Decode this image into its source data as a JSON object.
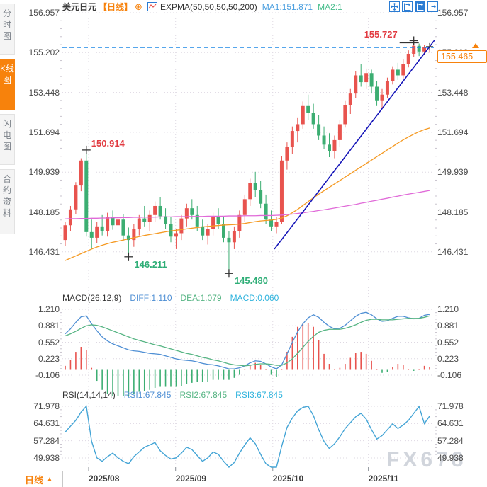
{
  "header": {
    "symbol": "美元日元",
    "period_tag": "【日线】",
    "add_icon": "⊕",
    "indicator": "EXPMA(50,50,50,50,200)",
    "ma1_label": "MA1:151.871",
    "ma2_label": "MA2:1"
  },
  "sidebar": {
    "tabs": [
      {
        "label": "分时图",
        "active": false
      },
      {
        "label": "K线图",
        "active": true
      },
      {
        "label": "闪电图",
        "active": false
      },
      {
        "label": "合约资料",
        "active": false
      }
    ]
  },
  "footer": {
    "period_label": "日线",
    "arrow": "▲"
  },
  "watermark": "FX678",
  "price_box": {
    "value": "155.465"
  },
  "colors": {
    "up": "#e8534e",
    "down": "#3cae72",
    "ma_orange": "#f59a23",
    "ma_magenta": "#e06ad8",
    "trend": "#1414b8",
    "dashed": "#1e88e5",
    "diff": "#4f8fd4",
    "dea": "#57b584",
    "rsi_line": "#45a5d6",
    "grid": "#ded8e2",
    "tick": "#c9c4ce",
    "accent_orange": "#f7820c",
    "toolbar_blue": "#2b7cd3",
    "marker_up": "#e23b41",
    "marker_down": "#2fae77"
  },
  "chart_data": {
    "type": "candlestick+indicators",
    "title": "美元日元 日线 (USD/JPY daily)",
    "x_axis": {
      "labels": [
        "2025/08",
        "2025/09",
        "2025/10",
        "2025/11"
      ],
      "indices": [
        4.43,
        20.9,
        39.3,
        57.4
      ]
    },
    "main": {
      "y_axis_labels": [
        "156.957",
        "155.202",
        "153.448",
        "151.694",
        "149.939",
        "148.185",
        "146.431"
      ],
      "y_range": [
        144.75,
        156.957
      ],
      "last_price": 155.465,
      "hline_price": 155.43,
      "trendline": {
        "i1": 39.6,
        "p1": 146.55,
        "i2": 69.9,
        "p2": 155.74
      },
      "markers": [
        {
          "i": 4,
          "price": 150.914,
          "label": "150.914",
          "color": "#e23b41",
          "pos": "above-right"
        },
        {
          "i": 12,
          "price": 146.211,
          "label": "146.211",
          "color": "#2fae77",
          "pos": "below-right"
        },
        {
          "i": 31,
          "price": 145.48,
          "label": "145.480",
          "color": "#2fae77",
          "pos": "below-right"
        },
        {
          "i": 66,
          "price": 155.727,
          "label": "155.727",
          "color": "#e23b41",
          "pos": "above-left"
        }
      ],
      "candles": [
        [
          146.95,
          147.75,
          146.7,
          147.6
        ],
        [
          147.6,
          148.45,
          147.35,
          148.3
        ],
        [
          148.3,
          149.5,
          148.1,
          149.35
        ],
        [
          149.35,
          150.55,
          149.1,
          150.45
        ],
        [
          150.45,
          150.914,
          147.1,
          147.3
        ],
        [
          147.3,
          147.85,
          146.55,
          147.05
        ],
        [
          147.05,
          147.75,
          146.8,
          147.55
        ],
        [
          147.55,
          148.05,
          147.15,
          147.35
        ],
        [
          147.35,
          148.15,
          147.1,
          147.95
        ],
        [
          147.95,
          148.25,
          147.4,
          147.6
        ],
        [
          147.6,
          148.05,
          147.2,
          147.85
        ],
        [
          147.85,
          148.1,
          146.9,
          147.15
        ],
        [
          147.15,
          147.5,
          146.211,
          146.95
        ],
        [
          146.95,
          147.65,
          146.65,
          147.45
        ],
        [
          147.45,
          148.05,
          147.15,
          147.9
        ],
        [
          147.9,
          148.45,
          147.55,
          147.75
        ],
        [
          147.75,
          148.25,
          147.35,
          148.05
        ],
        [
          148.05,
          148.65,
          147.75,
          148.45
        ],
        [
          148.45,
          148.85,
          147.85,
          148.0
        ],
        [
          148.0,
          148.35,
          147.45,
          147.65
        ],
        [
          147.65,
          147.95,
          146.85,
          147.1
        ],
        [
          147.1,
          147.45,
          146.55,
          147.25
        ],
        [
          147.25,
          148.05,
          146.95,
          147.9
        ],
        [
          147.9,
          148.55,
          147.55,
          148.35
        ],
        [
          148.35,
          148.75,
          147.85,
          148.05
        ],
        [
          148.05,
          148.45,
          147.35,
          147.55
        ],
        [
          147.55,
          147.85,
          146.95,
          147.15
        ],
        [
          147.15,
          147.65,
          146.75,
          147.45
        ],
        [
          147.45,
          148.15,
          147.15,
          147.95
        ],
        [
          147.95,
          148.35,
          147.45,
          147.65
        ],
        [
          147.65,
          147.95,
          146.85,
          147.05
        ],
        [
          147.05,
          147.35,
          145.48,
          146.85
        ],
        [
          146.85,
          147.55,
          146.55,
          147.35
        ],
        [
          147.35,
          148.25,
          147.05,
          148.05
        ],
        [
          148.05,
          148.95,
          147.75,
          148.75
        ],
        [
          148.75,
          149.65,
          148.45,
          149.45
        ],
        [
          149.45,
          149.95,
          148.85,
          149.15
        ],
        [
          149.15,
          149.55,
          148.35,
          148.55
        ],
        [
          148.55,
          148.95,
          147.65,
          147.85
        ],
        [
          147.85,
          148.25,
          147.35,
          147.55
        ],
        [
          147.55,
          147.95,
          147.25,
          147.75
        ],
        [
          147.75,
          150.65,
          147.65,
          150.45
        ],
        [
          150.45,
          151.25,
          150.05,
          151.05
        ],
        [
          151.05,
          151.95,
          150.75,
          151.75
        ],
        [
          151.75,
          152.35,
          151.25,
          152.05
        ],
        [
          152.05,
          153.05,
          151.85,
          152.85
        ],
        [
          152.85,
          153.35,
          152.25,
          152.55
        ],
        [
          152.55,
          152.95,
          151.85,
          152.05
        ],
        [
          152.05,
          152.45,
          151.35,
          151.55
        ],
        [
          151.55,
          151.95,
          150.95,
          151.15
        ],
        [
          151.15,
          151.65,
          150.6,
          150.85
        ],
        [
          150.85,
          151.55,
          150.55,
          151.35
        ],
        [
          151.35,
          152.25,
          151.05,
          152.05
        ],
        [
          152.05,
          153.1,
          151.9,
          152.9
        ],
        [
          152.9,
          153.6,
          152.5,
          153.4
        ],
        [
          153.4,
          154.4,
          153.2,
          154.2
        ],
        [
          154.2,
          154.7,
          153.7,
          153.9
        ],
        [
          153.9,
          154.5,
          153.6,
          154.3
        ],
        [
          154.3,
          154.45,
          153.4,
          153.7
        ],
        [
          153.7,
          153.95,
          152.85,
          153.1
        ],
        [
          153.1,
          153.6,
          152.75,
          153.35
        ],
        [
          153.35,
          154.1,
          153.2,
          153.95
        ],
        [
          153.95,
          154.6,
          153.8,
          154.45
        ],
        [
          154.45,
          154.75,
          154.0,
          154.2
        ],
        [
          154.2,
          154.9,
          154.05,
          154.7
        ],
        [
          154.7,
          155.3,
          154.55,
          155.15
        ],
        [
          155.15,
          155.727,
          155.0,
          155.5
        ],
        [
          155.5,
          155.6,
          155.05,
          155.25
        ],
        [
          155.25,
          155.55,
          155.1,
          155.45
        ],
        [
          155.45,
          155.55,
          155.2,
          155.465
        ]
      ],
      "ma_orange": [
        146.05,
        146.15,
        146.25,
        146.35,
        146.45,
        146.55,
        146.64,
        146.72,
        146.79,
        146.85,
        146.9,
        146.95,
        147.0,
        147.05,
        147.1,
        147.15,
        147.19,
        147.23,
        147.27,
        147.31,
        147.35,
        147.38,
        147.41,
        147.44,
        147.47,
        147.5,
        147.53,
        147.55,
        147.57,
        147.59,
        147.61,
        147.62,
        147.63,
        147.65,
        147.68,
        147.72,
        147.76,
        147.79,
        147.81,
        147.83,
        147.86,
        147.92,
        148.02,
        148.15,
        148.3,
        148.47,
        148.64,
        148.81,
        148.97,
        149.12,
        149.27,
        149.42,
        149.57,
        149.72,
        149.87,
        150.02,
        150.17,
        150.32,
        150.47,
        150.62,
        150.77,
        150.92,
        151.07,
        151.22,
        151.36,
        151.49,
        151.61,
        151.72,
        151.81,
        151.88
      ],
      "ma_magenta": [
        147.88,
        147.89,
        147.89,
        147.9,
        147.9,
        147.91,
        147.91,
        147.92,
        147.92,
        147.93,
        147.93,
        147.94,
        147.94,
        147.95,
        147.95,
        147.96,
        147.96,
        147.96,
        147.97,
        147.97,
        147.97,
        147.98,
        147.98,
        147.98,
        147.99,
        147.99,
        147.99,
        148.0,
        148.0,
        148.0,
        148.0,
        148.01,
        148.01,
        148.01,
        148.02,
        148.02,
        148.02,
        148.03,
        148.03,
        148.03,
        148.04,
        148.05,
        148.07,
        148.09,
        148.12,
        148.15,
        148.18,
        148.21,
        148.25,
        148.28,
        148.32,
        148.36,
        148.4,
        148.44,
        148.48,
        148.52,
        148.57,
        148.61,
        148.66,
        148.7,
        148.75,
        148.79,
        148.84,
        148.88,
        148.93,
        148.97,
        149.01,
        149.05,
        149.09,
        149.13
      ]
    },
    "macd": {
      "title": "MACD(26,12,9)",
      "diff_label": "DIFF:1.110",
      "dea_label": "DEA:1.079",
      "macd_label": "MACD:0.060",
      "y_axis_labels": [
        "1.210",
        "0.881",
        "0.552",
        "0.223",
        "-0.106"
      ],
      "diff": [
        0.72,
        0.82,
        0.95,
        1.06,
        1.08,
        0.92,
        0.78,
        0.66,
        0.58,
        0.52,
        0.48,
        0.44,
        0.4,
        0.38,
        0.37,
        0.35,
        0.33,
        0.32,
        0.31,
        0.28,
        0.25,
        0.22,
        0.2,
        0.19,
        0.18,
        0.16,
        0.13,
        0.11,
        0.1,
        0.08,
        0.05,
        0.02,
        0.02,
        0.04,
        0.08,
        0.14,
        0.18,
        0.17,
        0.12,
        0.06,
        0.02,
        0.1,
        0.32,
        0.55,
        0.76,
        0.92,
        1.04,
        1.1,
        1.05,
        0.95,
        0.87,
        0.82,
        0.83,
        0.89,
        0.98,
        1.07,
        1.13,
        1.15,
        1.1,
        1.02,
        0.97,
        0.98,
        1.03,
        1.07,
        1.07,
        1.04,
        1.02,
        1.03,
        1.09,
        1.11
      ],
      "dea": [
        0.68,
        0.72,
        0.77,
        0.83,
        0.88,
        0.9,
        0.89,
        0.86,
        0.82,
        0.78,
        0.74,
        0.7,
        0.66,
        0.62,
        0.59,
        0.56,
        0.53,
        0.5,
        0.48,
        0.45,
        0.42,
        0.39,
        0.36,
        0.33,
        0.31,
        0.28,
        0.25,
        0.23,
        0.2,
        0.18,
        0.15,
        0.12,
        0.1,
        0.09,
        0.08,
        0.09,
        0.11,
        0.12,
        0.12,
        0.11,
        0.09,
        0.09,
        0.14,
        0.22,
        0.33,
        0.45,
        0.57,
        0.67,
        0.75,
        0.79,
        0.81,
        0.81,
        0.81,
        0.83,
        0.86,
        0.9,
        0.95,
        0.99,
        1.01,
        1.01,
        1.0,
        1.0,
        1.0,
        1.01,
        1.02,
        1.03,
        1.03,
        1.03,
        1.05,
        1.079
      ]
    },
    "rsi": {
      "title": "RSI(14,14,14)",
      "rsi1_label": "RSI1:67.845",
      "rsi2_label": "RSI2:67.845",
      "rsi3_label": "RSI3:67.845",
      "y_axis_labels": [
        "71.978",
        "64.631",
        "57.284",
        "49.938"
      ],
      "rsi": [
        61,
        63.5,
        66,
        69.5,
        72,
        57,
        50,
        48.5,
        50.5,
        52,
        50,
        48.5,
        47.5,
        50.5,
        52.5,
        54.5,
        55.5,
        56.5,
        53,
        51,
        49.5,
        50,
        52,
        54.5,
        53.5,
        51,
        48.5,
        50,
        52.5,
        51.5,
        48.5,
        46,
        48,
        52,
        55.5,
        58.5,
        56,
        51.5,
        47.5,
        46,
        45,
        55,
        63,
        67,
        70,
        71.5,
        72,
        68,
        62,
        57,
        54,
        56,
        59,
        62.5,
        65,
        67.5,
        69,
        66.5,
        62,
        58,
        59.5,
        62,
        64.5,
        62.5,
        64,
        66,
        69,
        71.9,
        64.6,
        67.8
      ]
    }
  }
}
